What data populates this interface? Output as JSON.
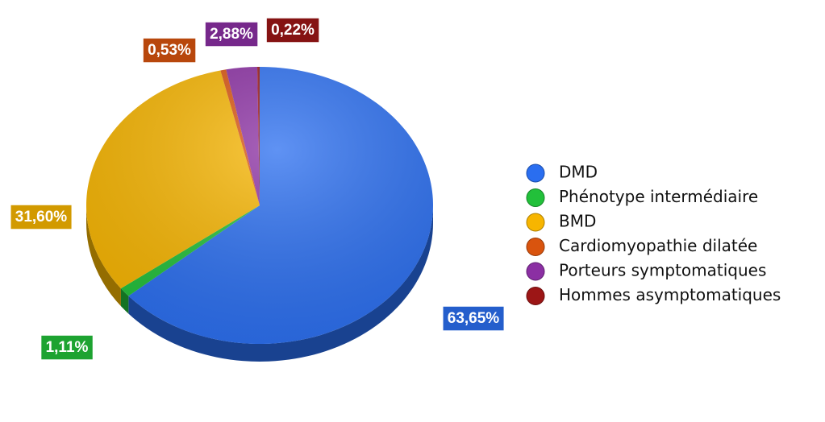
{
  "chart_data": {
    "type": "pie",
    "categories": [
      "DMD",
      "Phénotype intermédiaire",
      "BMD",
      "Cardiomyopathie dilatée",
      "Porteurs symptomatiques",
      "Hommes asymptomatiques"
    ],
    "values": [
      63.65,
      1.11,
      31.6,
      0.53,
      2.88,
      0.22
    ],
    "value_labels": [
      "63,65%",
      "1,11%",
      "31,60%",
      "0,53%",
      "2,88%",
      "0,22%"
    ],
    "colors": [
      "#2a6ef0",
      "#22c03a",
      "#f7b500",
      "#d9540e",
      "#8b2fa3",
      "#9c1616"
    ],
    "legend": "right"
  }
}
